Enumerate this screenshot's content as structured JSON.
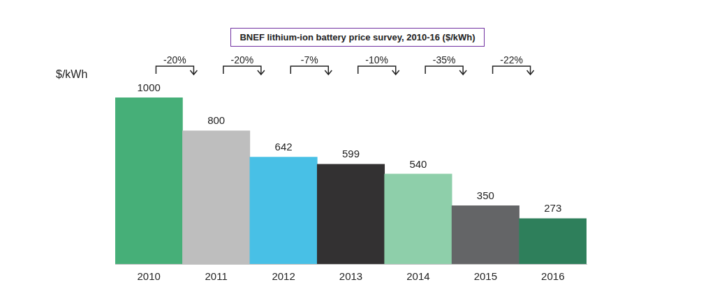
{
  "chart_data": {
    "type": "bar",
    "title": "BNEF lithium-ion battery price survey, 2010-16 ($/kWh)",
    "ylabel": "$/kWh",
    "categories": [
      "2010",
      "2011",
      "2012",
      "2013",
      "2014",
      "2015",
      "2016"
    ],
    "values": [
      1000,
      800,
      642,
      599,
      540,
      350,
      273
    ],
    "colors": [
      "#46AF78",
      "#BEBEBE",
      "#48C0E6",
      "#333132",
      "#8ECFAA",
      "#646567",
      "#2E7F5B"
    ],
    "annotations": [
      "-20%",
      "-20%",
      "-7%",
      "-10%",
      "-35%",
      "-22%"
    ],
    "ylim": [
      0,
      1000
    ],
    "grid": false,
    "data_labels": true,
    "tick_labels": "x"
  }
}
